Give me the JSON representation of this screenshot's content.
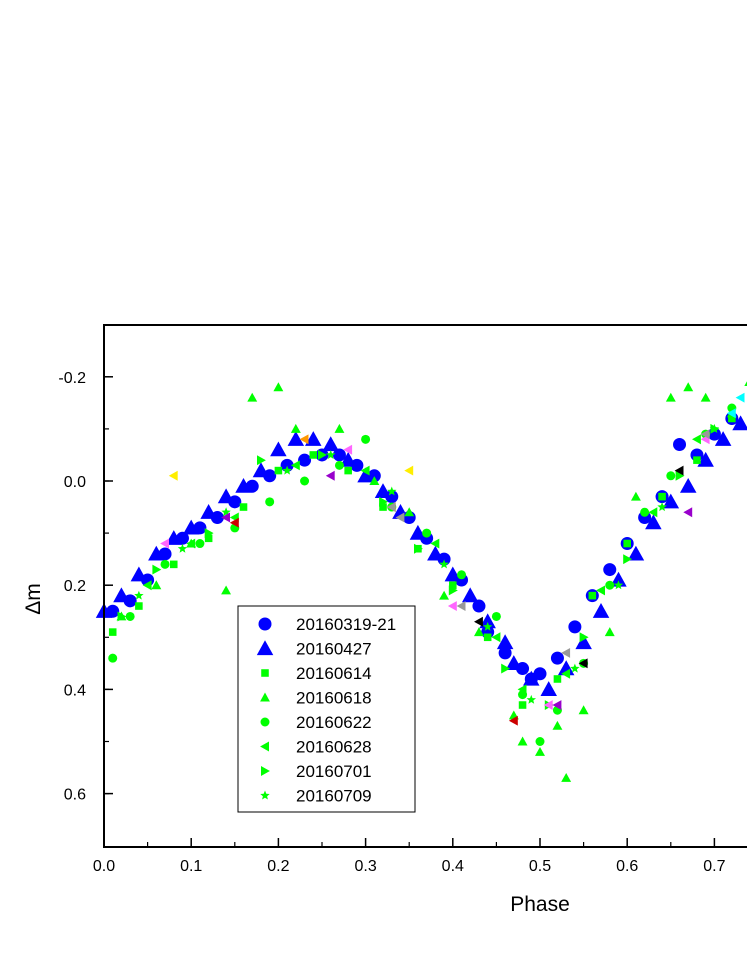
{
  "chart_data": {
    "type": "scatter",
    "title": "",
    "xlabel": "Phase",
    "ylabel": "Δm",
    "xlim": [
      0.0,
      0.74
    ],
    "ylim": [
      0.7,
      -0.3
    ],
    "y_inverted": true,
    "grid": false,
    "legend_position": "lower-left inside plot",
    "x_ticks": [
      "0.0",
      "0.1",
      "0.2",
      "0.3",
      "0.4",
      "0.5",
      "0.6",
      "0.7"
    ],
    "y_ticks": [
      "-0.2",
      "0.0",
      "0.2",
      "0.4",
      "0.6"
    ],
    "legend": [
      {
        "label": "20160319-21",
        "marker": "circle",
        "color": "#0000ff"
      },
      {
        "label": "20160427",
        "marker": "triangle-up",
        "color": "#0000ff"
      },
      {
        "label": "20160614",
        "marker": "square",
        "color": "#00ff00"
      },
      {
        "label": "20160618",
        "marker": "triangle-up",
        "color": "#00ff00"
      },
      {
        "label": "20160622",
        "marker": "circle",
        "color": "#00ff00"
      },
      {
        "label": "20160628",
        "marker": "triangle-left",
        "color": "#00ff00"
      },
      {
        "label": "20160701",
        "marker": "triangle-right",
        "color": "#00ff00"
      },
      {
        "label": "20160709",
        "marker": "star",
        "color": "#00ff00"
      }
    ],
    "series": [
      {
        "name": "20160319-21",
        "marker": "circle",
        "color": "#0000ff",
        "x": [
          0.01,
          0.03,
          0.05,
          0.07,
          0.09,
          0.11,
          0.13,
          0.15,
          0.17,
          0.19,
          0.21,
          0.23,
          0.25,
          0.27,
          0.29,
          0.31,
          0.33,
          0.35,
          0.37,
          0.39,
          0.41,
          0.43,
          0.44,
          0.46,
          0.48,
          0.49,
          0.5,
          0.52,
          0.54,
          0.56,
          0.58,
          0.6,
          0.62,
          0.64,
          0.66,
          0.68,
          0.7,
          0.72
        ],
        "y": [
          0.25,
          0.23,
          0.19,
          0.14,
          0.11,
          0.09,
          0.07,
          0.04,
          0.01,
          -0.01,
          -0.03,
          -0.04,
          -0.05,
          -0.05,
          -0.03,
          -0.01,
          0.03,
          0.07,
          0.11,
          0.15,
          0.19,
          0.24,
          0.29,
          0.33,
          0.36,
          0.38,
          0.37,
          0.34,
          0.28,
          0.22,
          0.17,
          0.12,
          0.07,
          0.03,
          -0.07,
          -0.05,
          -0.09,
          -0.12
        ]
      },
      {
        "name": "20160427",
        "marker": "triangle-up",
        "color": "#0000ff",
        "x": [
          0.0,
          0.02,
          0.04,
          0.06,
          0.08,
          0.1,
          0.12,
          0.14,
          0.16,
          0.18,
          0.2,
          0.22,
          0.24,
          0.26,
          0.28,
          0.3,
          0.32,
          0.34,
          0.36,
          0.38,
          0.4,
          0.42,
          0.44,
          0.46,
          0.47,
          0.49,
          0.51,
          0.53,
          0.55,
          0.57,
          0.59,
          0.61,
          0.63,
          0.65,
          0.67,
          0.69,
          0.71,
          0.73
        ],
        "y": [
          0.25,
          0.22,
          0.18,
          0.14,
          0.11,
          0.09,
          0.06,
          0.03,
          0.01,
          -0.02,
          -0.06,
          -0.08,
          -0.08,
          -0.07,
          -0.04,
          -0.01,
          0.02,
          0.06,
          0.1,
          0.14,
          0.18,
          0.22,
          0.27,
          0.31,
          0.35,
          0.38,
          0.4,
          0.36,
          0.31,
          0.25,
          0.19,
          0.14,
          0.08,
          0.04,
          0.01,
          -0.04,
          -0.08,
          -0.11
        ]
      },
      {
        "name": "20160614",
        "marker": "square",
        "color": "#00ff00",
        "x": [
          0.01,
          0.04,
          0.08,
          0.12,
          0.16,
          0.2,
          0.24,
          0.28,
          0.32,
          0.36,
          0.4,
          0.44,
          0.48,
          0.52,
          0.56,
          0.6,
          0.64,
          0.68,
          0.72
        ],
        "y": [
          0.29,
          0.24,
          0.16,
          0.11,
          0.05,
          -0.02,
          -0.05,
          -0.02,
          0.05,
          0.13,
          0.2,
          0.3,
          0.43,
          0.38,
          0.22,
          0.12,
          0.03,
          -0.04,
          -0.12
        ]
      },
      {
        "name": "20160618",
        "marker": "triangle-up",
        "color": "#00ff00",
        "x": [
          0.02,
          0.06,
          0.1,
          0.14,
          0.17,
          0.2,
          0.22,
          0.27,
          0.31,
          0.35,
          0.39,
          0.43,
          0.47,
          0.5,
          0.53,
          0.55,
          0.58,
          0.61,
          0.65,
          0.67,
          0.69,
          0.72,
          0.74,
          0.52,
          0.48
        ],
        "y": [
          0.26,
          0.2,
          0.12,
          0.21,
          -0.16,
          -0.18,
          -0.1,
          -0.1,
          0.0,
          0.06,
          0.22,
          0.29,
          0.45,
          0.52,
          0.57,
          0.44,
          0.29,
          0.03,
          -0.16,
          -0.18,
          -0.16,
          -0.13,
          -0.19,
          0.47,
          0.5
        ]
      },
      {
        "name": "20160622",
        "marker": "circle",
        "color": "#00ff00",
        "x": [
          0.01,
          0.03,
          0.07,
          0.11,
          0.15,
          0.19,
          0.23,
          0.27,
          0.3,
          0.33,
          0.37,
          0.41,
          0.45,
          0.48,
          0.5,
          0.52,
          0.55,
          0.58,
          0.62,
          0.65,
          0.69,
          0.72
        ],
        "y": [
          0.34,
          0.26,
          0.16,
          0.12,
          0.09,
          0.04,
          0.0,
          -0.03,
          -0.08,
          0.05,
          0.1,
          0.18,
          0.26,
          0.41,
          0.5,
          0.44,
          0.35,
          0.2,
          0.06,
          -0.01,
          -0.09,
          -0.14
        ]
      },
      {
        "name": "20160628",
        "marker": "triangle-left",
        "color": "#00ff00",
        "x": [
          0.05,
          0.1,
          0.15,
          0.22,
          0.3,
          0.38,
          0.45,
          0.48,
          0.53,
          0.57,
          0.63,
          0.68
        ],
        "y": [
          0.2,
          0.12,
          0.07,
          -0.03,
          -0.02,
          0.12,
          0.3,
          0.4,
          0.37,
          0.21,
          0.06,
          -0.08
        ]
      },
      {
        "name": "20160701",
        "marker": "triangle-right",
        "color": "#00ff00",
        "x": [
          0.02,
          0.06,
          0.12,
          0.18,
          0.25,
          0.32,
          0.36,
          0.4,
          0.46,
          0.51,
          0.55,
          0.6,
          0.66,
          0.7
        ],
        "y": [
          0.26,
          0.17,
          0.1,
          -0.04,
          -0.05,
          0.04,
          0.13,
          0.21,
          0.36,
          0.43,
          0.3,
          0.15,
          -0.01,
          -0.1
        ]
      },
      {
        "name": "20160709",
        "marker": "star",
        "color": "#00ff00",
        "x": [
          0.04,
          0.09,
          0.14,
          0.21,
          0.26,
          0.33,
          0.39,
          0.44,
          0.49,
          0.54,
          0.59,
          0.64,
          0.7
        ],
        "y": [
          0.22,
          0.13,
          0.06,
          -0.02,
          -0.05,
          0.02,
          0.16,
          0.28,
          0.42,
          0.36,
          0.2,
          0.05,
          -0.1
        ]
      },
      {
        "name": "",
        "marker": "triangle-left",
        "color": "#ff66ff",
        "x": [
          0.07,
          0.4,
          0.51,
          0.69,
          0.28
        ],
        "y": [
          0.12,
          0.24,
          0.43,
          -0.08,
          -0.06
        ]
      },
      {
        "name": "",
        "marker": "triangle-left",
        "color": "#9900cc",
        "x": [
          0.26,
          0.52,
          0.67,
          0.14
        ],
        "y": [
          -0.01,
          0.43,
          0.06,
          0.07
        ]
      },
      {
        "name": "",
        "marker": "triangle-left",
        "color": "#ff9900",
        "x": [
          0.23,
          0.33
        ],
        "y": [
          -0.08,
          0.05
        ]
      },
      {
        "name": "",
        "marker": "triangle-left",
        "color": "#ffee00",
        "x": [
          0.08,
          0.35
        ],
        "y": [
          -0.01,
          -0.02
        ]
      },
      {
        "name": "",
        "marker": "triangle-left",
        "color": "#00ffff",
        "x": [
          0.72,
          0.73
        ],
        "y": [
          -0.13,
          -0.16
        ]
      },
      {
        "name": "",
        "marker": "triangle-left",
        "color": "#999999",
        "x": [
          0.33,
          0.34,
          0.41,
          0.53,
          0.69
        ],
        "y": [
          0.05,
          0.07,
          0.24,
          0.33,
          -0.09
        ]
      },
      {
        "name": "",
        "marker": "triangle-left",
        "color": "#cc0000",
        "x": [
          0.47,
          0.15
        ],
        "y": [
          0.46,
          0.08
        ]
      },
      {
        "name": "",
        "marker": "triangle-left",
        "color": "#000000",
        "x": [
          0.43,
          0.55,
          0.66
        ],
        "y": [
          0.27,
          0.35,
          -0.02
        ]
      }
    ]
  }
}
